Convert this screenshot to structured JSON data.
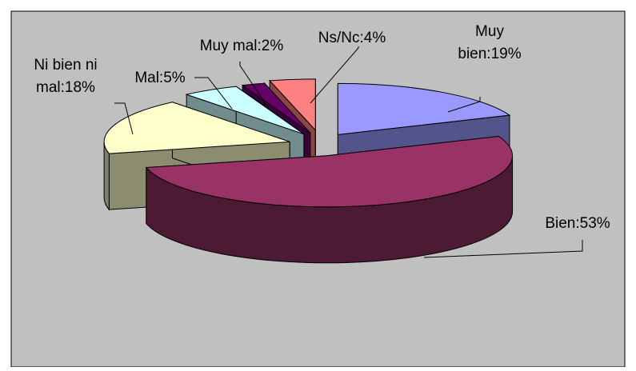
{
  "colors": {
    "background": "#c0c0c0",
    "border": "#000000",
    "Muy bien": "#9999ff",
    "Bien": "#993366",
    "Ni bien ni mal": "#ffffcc",
    "Mal": "#ccffff",
    "Muy mal": "#660066",
    "Ns/Nc": "#ff8080"
  },
  "chart_data": {
    "type": "pie",
    "style": "3d-exploded",
    "categories": [
      "Muy bien",
      "Bien",
      "Ni bien ni mal",
      "Mal",
      "Muy mal",
      "Ns/Nc"
    ],
    "values": [
      19,
      53,
      18,
      5,
      2,
      4
    ],
    "unit": "%",
    "labels": [
      "Muy bien:19%",
      "Bien:53%",
      "Ni bien ni mal:18%",
      "Mal:5%",
      "Muy mal:2%",
      "Ns/Nc:4%"
    ],
    "label_lines": {
      "Muy bien": [
        "Muy",
        "bien:19%"
      ],
      "Bien": [
        "Bien:53%"
      ],
      "Ni bien ni mal": [
        "Ni bien ni",
        "mal:18%"
      ],
      "Mal": [
        "Mal:5%"
      ],
      "Muy mal": [
        "Muy mal:2%"
      ],
      "Ns/Nc": [
        "Ns/Nc:4%"
      ]
    },
    "title": "",
    "legend": "none",
    "grid": false
  }
}
